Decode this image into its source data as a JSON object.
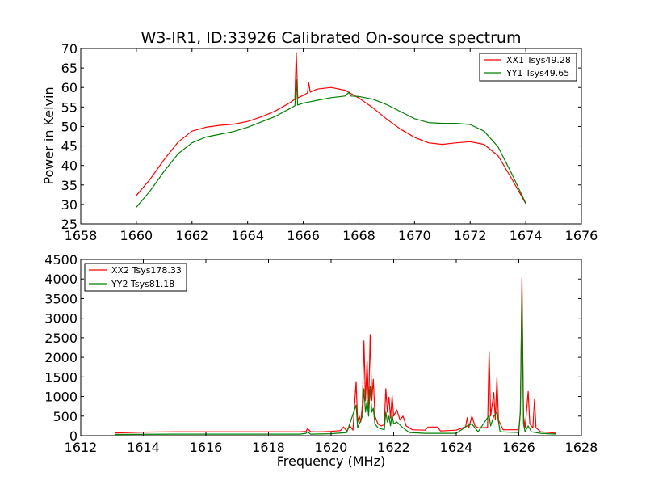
{
  "figure": {
    "background": "#ffffff"
  },
  "chart_data": [
    {
      "type": "line",
      "title": "W3-IR1, ID:33926 Calibrated On-source spectrum",
      "xlabel": "",
      "ylabel": "Power in Kelvin",
      "xlim": [
        1658,
        1676
      ],
      "ylim": [
        25,
        70
      ],
      "xticks": [
        "1658",
        "1660",
        "1662",
        "1664",
        "1666",
        "1668",
        "1670",
        "1672",
        "1674",
        "1676"
      ],
      "yticks": [
        "25",
        "30",
        "35",
        "40",
        "45",
        "50",
        "55",
        "60",
        "65",
        "70"
      ],
      "legend_position": "top-right",
      "series": [
        {
          "name": "XX1 Tsys49.28",
          "color": "#ff0000",
          "points": [
            [
              1660.0,
              32.3
            ],
            [
              1660.5,
              36.5
            ],
            [
              1661.0,
              41.5
            ],
            [
              1661.5,
              46.0
            ],
            [
              1662.0,
              48.8
            ],
            [
              1662.5,
              49.8
            ],
            [
              1663.0,
              50.3
            ],
            [
              1663.5,
              50.6
            ],
            [
              1664.0,
              51.3
            ],
            [
              1664.5,
              52.5
            ],
            [
              1665.0,
              54.0
            ],
            [
              1665.5,
              56.0
            ],
            [
              1665.7,
              57.0
            ],
            [
              1665.75,
              69.0
            ],
            [
              1665.8,
              57.3
            ],
            [
              1666.0,
              58.0
            ],
            [
              1666.15,
              58.6
            ],
            [
              1666.2,
              61.2
            ],
            [
              1666.25,
              58.8
            ],
            [
              1666.5,
              59.6
            ],
            [
              1667.0,
              60.0
            ],
            [
              1667.5,
              59.3
            ],
            [
              1668.0,
              57.3
            ],
            [
              1668.5,
              54.8
            ],
            [
              1669.0,
              51.9
            ],
            [
              1669.5,
              49.3
            ],
            [
              1670.0,
              47.2
            ],
            [
              1670.5,
              45.8
            ],
            [
              1671.0,
              45.4
            ],
            [
              1671.5,
              45.8
            ],
            [
              1672.0,
              46.1
            ],
            [
              1672.5,
              45.4
            ],
            [
              1673.0,
              42.5
            ],
            [
              1673.5,
              36.5
            ],
            [
              1674.0,
              30.2
            ]
          ]
        },
        {
          "name": "YY1 Tsys49.65",
          "color": "#008000",
          "points": [
            [
              1660.0,
              29.3
            ],
            [
              1660.5,
              33.5
            ],
            [
              1661.0,
              38.5
            ],
            [
              1661.5,
              43.0
            ],
            [
              1662.0,
              45.8
            ],
            [
              1662.5,
              47.3
            ],
            [
              1663.0,
              48.0
            ],
            [
              1663.5,
              48.7
            ],
            [
              1664.0,
              49.8
            ],
            [
              1664.5,
              51.2
            ],
            [
              1665.0,
              52.6
            ],
            [
              1665.5,
              54.5
            ],
            [
              1665.7,
              55.3
            ],
            [
              1665.75,
              62.0
            ],
            [
              1665.8,
              55.5
            ],
            [
              1666.0,
              56.0
            ],
            [
              1666.5,
              56.7
            ],
            [
              1667.0,
              57.4
            ],
            [
              1667.5,
              57.8
            ],
            [
              1667.65,
              58.8
            ],
            [
              1667.7,
              57.8
            ],
            [
              1668.0,
              57.7
            ],
            [
              1668.5,
              57.0
            ],
            [
              1669.0,
              55.6
            ],
            [
              1669.5,
              53.8
            ],
            [
              1670.0,
              52.0
            ],
            [
              1670.5,
              51.0
            ],
            [
              1671.0,
              50.8
            ],
            [
              1671.5,
              50.8
            ],
            [
              1672.0,
              50.5
            ],
            [
              1672.5,
              48.8
            ],
            [
              1673.0,
              44.8
            ],
            [
              1673.5,
              37.8
            ],
            [
              1674.0,
              30.3
            ]
          ]
        }
      ]
    },
    {
      "type": "line",
      "title": "",
      "xlabel": "Frequency (MHz)",
      "ylabel": "",
      "xlim": [
        1612,
        1628
      ],
      "ylim": [
        0,
        4500
      ],
      "xticks": [
        "1612",
        "1614",
        "1616",
        "1618",
        "1620",
        "1622",
        "1624",
        "1626",
        "1628"
      ],
      "yticks": [
        "0",
        "500",
        "1000",
        "1500",
        "2000",
        "2500",
        "3000",
        "3500",
        "4000",
        "4500"
      ],
      "legend_position": "top-left",
      "series": [
        {
          "name": "XX2 Tsys178.33",
          "color": "#ff0000",
          "points": [
            [
              1613.1,
              70
            ],
            [
              1614.0,
              90
            ],
            [
              1615.0,
              100
            ],
            [
              1617.0,
              100
            ],
            [
              1619.0,
              100
            ],
            [
              1619.2,
              110
            ],
            [
              1619.25,
              180
            ],
            [
              1619.35,
              100
            ],
            [
              1619.7,
              100
            ],
            [
              1620.0,
              110
            ],
            [
              1620.3,
              130
            ],
            [
              1620.4,
              220
            ],
            [
              1620.5,
              120
            ],
            [
              1620.6,
              250
            ],
            [
              1620.7,
              140
            ],
            [
              1620.8,
              1380
            ],
            [
              1620.85,
              350
            ],
            [
              1620.9,
              500
            ],
            [
              1620.95,
              350
            ],
            [
              1621.0,
              800
            ],
            [
              1621.05,
              2420
            ],
            [
              1621.1,
              900
            ],
            [
              1621.15,
              1920
            ],
            [
              1621.2,
              700
            ],
            [
              1621.25,
              2580
            ],
            [
              1621.3,
              900
            ],
            [
              1621.35,
              1440
            ],
            [
              1621.4,
              500
            ],
            [
              1621.5,
              300
            ],
            [
              1621.6,
              250
            ],
            [
              1621.7,
              280
            ],
            [
              1621.75,
              1200
            ],
            [
              1621.8,
              600
            ],
            [
              1621.85,
              980
            ],
            [
              1621.9,
              450
            ],
            [
              1621.95,
              1020
            ],
            [
              1622.0,
              500
            ],
            [
              1622.1,
              660
            ],
            [
              1622.2,
              400
            ],
            [
              1622.3,
              500
            ],
            [
              1622.4,
              250
            ],
            [
              1622.6,
              150
            ],
            [
              1623.0,
              140
            ],
            [
              1623.1,
              220
            ],
            [
              1623.4,
              220
            ],
            [
              1623.5,
              120
            ],
            [
              1624.0,
              140
            ],
            [
              1624.3,
              230
            ],
            [
              1624.35,
              460
            ],
            [
              1624.4,
              200
            ],
            [
              1624.5,
              500
            ],
            [
              1624.6,
              250
            ],
            [
              1624.7,
              200
            ],
            [
              1625.0,
              210
            ],
            [
              1625.05,
              2150
            ],
            [
              1625.1,
              500
            ],
            [
              1625.2,
              1100
            ],
            [
              1625.25,
              400
            ],
            [
              1625.3,
              1480
            ],
            [
              1625.35,
              400
            ],
            [
              1625.5,
              150
            ],
            [
              1626.0,
              150
            ],
            [
              1626.05,
              600
            ],
            [
              1626.1,
              4020
            ],
            [
              1626.15,
              500
            ],
            [
              1626.2,
              200
            ],
            [
              1626.3,
              1130
            ],
            [
              1626.35,
              300
            ],
            [
              1626.45,
              200
            ],
            [
              1626.5,
              920
            ],
            [
              1626.55,
              200
            ],
            [
              1626.7,
              100
            ],
            [
              1627.0,
              80
            ],
            [
              1627.2,
              60
            ]
          ]
        },
        {
          "name": "YY2 Tsys81.18",
          "color": "#008000",
          "points": [
            [
              1613.1,
              30
            ],
            [
              1615.0,
              40
            ],
            [
              1619.0,
              40
            ],
            [
              1619.2,
              60
            ],
            [
              1619.25,
              100
            ],
            [
              1619.35,
              40
            ],
            [
              1620.0,
              50
            ],
            [
              1620.5,
              80
            ],
            [
              1620.8,
              780
            ],
            [
              1620.85,
              200
            ],
            [
              1620.9,
              300
            ],
            [
              1621.0,
              500
            ],
            [
              1621.05,
              1200
            ],
            [
              1621.1,
              600
            ],
            [
              1621.15,
              900
            ],
            [
              1621.2,
              500
            ],
            [
              1621.25,
              1250
            ],
            [
              1621.3,
              600
            ],
            [
              1621.35,
              700
            ],
            [
              1621.4,
              300
            ],
            [
              1621.5,
              200
            ],
            [
              1621.7,
              150
            ],
            [
              1621.75,
              600
            ],
            [
              1621.8,
              350
            ],
            [
              1621.85,
              500
            ],
            [
              1621.9,
              250
            ],
            [
              1621.95,
              550
            ],
            [
              1622.0,
              300
            ],
            [
              1622.1,
              350
            ],
            [
              1622.3,
              200
            ],
            [
              1622.5,
              80
            ],
            [
              1623.0,
              60
            ],
            [
              1624.0,
              60
            ],
            [
              1624.35,
              250
            ],
            [
              1624.5,
              300
            ],
            [
              1624.7,
              100
            ],
            [
              1625.05,
              520
            ],
            [
              1625.1,
              250
            ],
            [
              1625.2,
              500
            ],
            [
              1625.3,
              600
            ],
            [
              1625.4,
              100
            ],
            [
              1626.0,
              80
            ],
            [
              1626.05,
              600
            ],
            [
              1626.1,
              3680
            ],
            [
              1626.15,
              300
            ],
            [
              1626.2,
              100
            ],
            [
              1626.3,
              250
            ],
            [
              1626.4,
              100
            ],
            [
              1626.7,
              60
            ],
            [
              1627.2,
              40
            ]
          ]
        }
      ]
    }
  ]
}
